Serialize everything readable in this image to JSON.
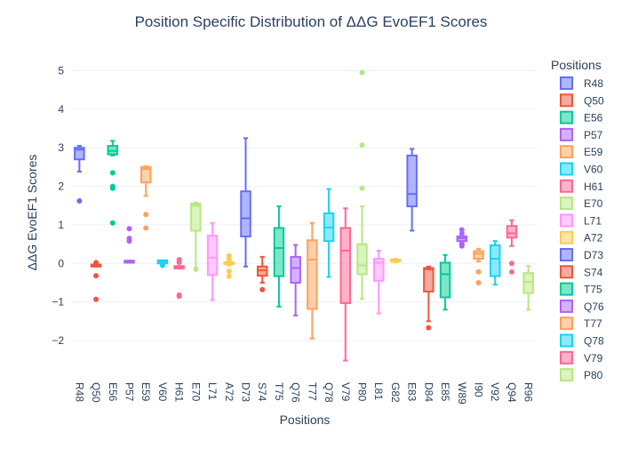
{
  "chart_data": {
    "type": "box",
    "title": "Position Specific Distribution of ΔΔG EvoEF1 Scores",
    "xlabel": "Positions",
    "ylabel": "ΔΔG EvoEF1 Scores",
    "ylim": [
      -2.9,
      5.45
    ],
    "yticks": [
      -2,
      -1,
      0,
      1,
      2,
      3,
      4,
      5
    ],
    "grid": "horizontal",
    "legend_title": "Positions",
    "legend_position": "right",
    "palette": [
      "#636efa",
      "#ef553b",
      "#00cc96",
      "#ab63fa",
      "#ffa15a",
      "#19d3f3",
      "#ff6692",
      "#b6e880",
      "#ff97ff",
      "#fecb52"
    ],
    "categories": [
      "R48",
      "Q50",
      "E56",
      "P57",
      "E59",
      "V60",
      "H61",
      "E70",
      "L71",
      "A72",
      "D73",
      "S74",
      "T75",
      "Q76",
      "T77",
      "Q78",
      "V79",
      "P80",
      "L81",
      "G82",
      "E83",
      "D84",
      "E85",
      "W89",
      "I90",
      "V92",
      "Q94",
      "R96"
    ],
    "legend_entries": [
      "R48",
      "Q50",
      "E56",
      "P57",
      "E59",
      "V60",
      "H61",
      "E70",
      "L71",
      "A72",
      "D73",
      "S74",
      "T75",
      "Q76",
      "T77",
      "Q78",
      "V79",
      "P80"
    ],
    "series": [
      {
        "name": "R48",
        "q1": 2.7,
        "median": 2.95,
        "q3": 3.0,
        "whisker_low": 2.38,
        "whisker_high": 3.05,
        "outliers": [
          1.62
        ]
      },
      {
        "name": "Q50",
        "q1": -0.08,
        "median": -0.05,
        "q3": -0.03,
        "whisker_low": -0.08,
        "whisker_high": -0.03,
        "outliers": [
          0.02,
          -0.02,
          -0.32,
          -0.93
        ]
      },
      {
        "name": "E56",
        "q1": 2.83,
        "median": 2.92,
        "q3": 3.05,
        "whisker_low": 2.8,
        "whisker_high": 3.18,
        "outliers": [
          2.35,
          2.0,
          1.95,
          1.05
        ]
      },
      {
        "name": "P57",
        "q1": 0.02,
        "median": 0.05,
        "q3": 0.07,
        "whisker_low": 0.02,
        "whisker_high": 0.07,
        "outliers": [
          0.9,
          0.65,
          0.58
        ]
      },
      {
        "name": "E59",
        "q1": 2.1,
        "median": 2.45,
        "q3": 2.5,
        "whisker_low": 1.75,
        "whisker_high": 2.52,
        "outliers": [
          1.27,
          0.92
        ]
      },
      {
        "name": "V60",
        "q1": 0.0,
        "median": 0.05,
        "q3": 0.08,
        "whisker_low": -0.05,
        "whisker_high": 0.08,
        "outliers": [
          -0.05
        ]
      },
      {
        "name": "H61",
        "q1": -0.13,
        "median": -0.1,
        "q3": -0.07,
        "whisker_low": -0.13,
        "whisker_high": -0.07,
        "outliers": [
          0.1,
          0.03,
          -0.82,
          -0.85
        ]
      },
      {
        "name": "E70",
        "q1": 0.85,
        "median": 1.5,
        "q3": 1.55,
        "whisker_low": -0.15,
        "whisker_high": 1.58,
        "outliers": [
          -0.15
        ]
      },
      {
        "name": "L71",
        "q1": -0.3,
        "median": 0.15,
        "q3": 0.72,
        "whisker_low": -0.95,
        "whisker_high": 1.05,
        "outliers": []
      },
      {
        "name": "A72",
        "q1": -0.02,
        "median": 0.0,
        "q3": 0.03,
        "whisker_low": -0.05,
        "whisker_high": 0.05,
        "outliers": [
          0.2,
          0.12,
          -0.2,
          -0.33
        ]
      },
      {
        "name": "D73",
        "q1": 0.7,
        "median": 1.17,
        "q3": 1.87,
        "whisker_low": -0.08,
        "whisker_high": 3.25,
        "outliers": []
      },
      {
        "name": "S74",
        "q1": -0.32,
        "median": -0.18,
        "q3": -0.08,
        "whisker_low": -0.5,
        "whisker_high": 0.17,
        "outliers": [
          -0.68
        ]
      },
      {
        "name": "T75",
        "q1": -0.33,
        "median": 0.4,
        "q3": 0.92,
        "whisker_low": -1.12,
        "whisker_high": 1.48,
        "outliers": []
      },
      {
        "name": "Q76",
        "q1": -0.5,
        "median": -0.12,
        "q3": 0.17,
        "whisker_low": -1.35,
        "whisker_high": 0.48,
        "outliers": []
      },
      {
        "name": "T77",
        "q1": -1.18,
        "median": 0.1,
        "q3": 0.6,
        "whisker_low": -1.95,
        "whisker_high": 1.05,
        "outliers": []
      },
      {
        "name": "Q78",
        "q1": 0.58,
        "median": 0.93,
        "q3": 1.3,
        "whisker_low": -0.35,
        "whisker_high": 1.93,
        "outliers": []
      },
      {
        "name": "V79",
        "q1": -1.03,
        "median": 0.33,
        "q3": 0.92,
        "whisker_low": -2.52,
        "whisker_high": 1.43,
        "outliers": []
      },
      {
        "name": "P80",
        "q1": -0.28,
        "median": -0.05,
        "q3": 0.5,
        "whisker_low": -0.92,
        "whisker_high": 1.48,
        "outliers": [
          4.95,
          3.07,
          1.95
        ]
      },
      {
        "name": "L81",
        "q1": -0.45,
        "median": 0.02,
        "q3": 0.12,
        "whisker_low": -1.3,
        "whisker_high": 0.33,
        "outliers": []
      },
      {
        "name": "G82",
        "q1": 0.05,
        "median": 0.08,
        "q3": 0.1,
        "whisker_low": 0.03,
        "whisker_high": 0.12,
        "outliers": []
      },
      {
        "name": "E83",
        "q1": 1.48,
        "median": 1.8,
        "q3": 2.8,
        "whisker_low": 0.85,
        "whisker_high": 2.97,
        "outliers": []
      },
      {
        "name": "D84",
        "q1": -0.73,
        "median": -0.15,
        "q3": -0.12,
        "whisker_low": -1.5,
        "whisker_high": -0.08,
        "outliers": [
          -1.67
        ]
      },
      {
        "name": "E85",
        "q1": -0.88,
        "median": -0.28,
        "q3": 0.02,
        "whisker_low": -1.2,
        "whisker_high": 0.22,
        "outliers": []
      },
      {
        "name": "W89",
        "q1": 0.58,
        "median": 0.65,
        "q3": 0.7,
        "whisker_low": 0.55,
        "whisker_high": 0.72,
        "outliers": [
          0.87,
          0.78,
          0.5,
          0.45
        ]
      },
      {
        "name": "I90",
        "q1": 0.12,
        "median": 0.25,
        "q3": 0.32,
        "whisker_low": 0.05,
        "whisker_high": 0.38,
        "outliers": [
          -0.22,
          -0.5
        ]
      },
      {
        "name": "V92",
        "q1": -0.33,
        "median": 0.12,
        "q3": 0.47,
        "whisker_low": -0.55,
        "whisker_high": 0.58,
        "outliers": []
      },
      {
        "name": "Q94",
        "q1": 0.67,
        "median": 0.78,
        "q3": 0.97,
        "whisker_low": 0.45,
        "whisker_high": 1.12,
        "outliers": [
          0.0,
          -0.22
        ]
      },
      {
        "name": "R96",
        "q1": -0.77,
        "median": -0.48,
        "q3": -0.25,
        "whisker_low": -1.2,
        "whisker_high": -0.07,
        "outliers": []
      }
    ]
  }
}
